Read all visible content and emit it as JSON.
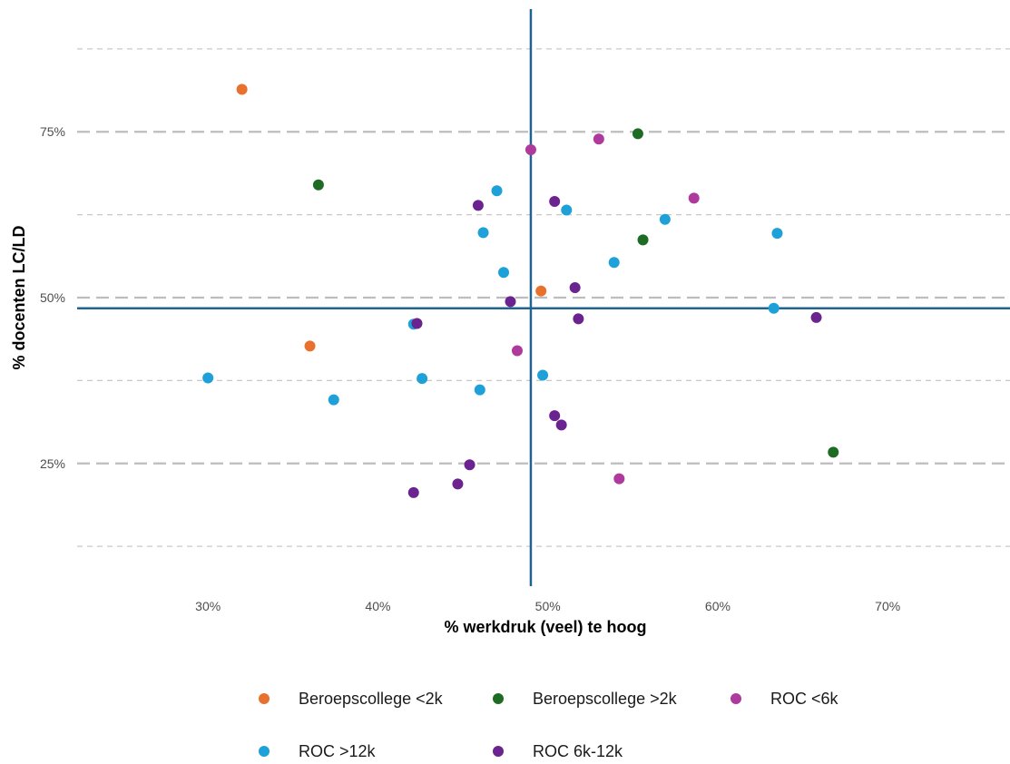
{
  "chart_data": {
    "type": "scatter",
    "xlabel": "% werkdruk (veel) te hoog",
    "ylabel": "% docenten LC/LD",
    "xlim": [
      22.3,
      77.2
    ],
    "ylim": [
      6.5,
      93.5
    ],
    "x_ticks": [
      {
        "value": 30,
        "label": "30%"
      },
      {
        "value": 40,
        "label": "40%"
      },
      {
        "value": 50,
        "label": "50%"
      },
      {
        "value": 60,
        "label": "60%"
      },
      {
        "value": 70,
        "label": "70%"
      }
    ],
    "y_ticks": [
      {
        "value": 25,
        "label": "25%"
      },
      {
        "value": 50,
        "label": "50%"
      },
      {
        "value": 75,
        "label": "75%"
      }
    ],
    "y_minor_grid": [
      12.5,
      37.5,
      62.5,
      87.5
    ],
    "grid": "horizontal dashed",
    "reference_lines": {
      "x": 49.0,
      "y": 48.4,
      "color": "#1f6391"
    },
    "legend_position": "bottom",
    "series": [
      {
        "name": "Beroepscollege <2k",
        "color": "#e8712d",
        "points": [
          [
            32.0,
            81.4
          ],
          [
            36.0,
            42.7
          ],
          [
            49.6,
            51.0
          ]
        ]
      },
      {
        "name": "Beroepscollege >2k",
        "color": "#1e6b24",
        "points": [
          [
            36.5,
            67.0
          ],
          [
            55.3,
            74.7
          ],
          [
            55.6,
            58.7
          ],
          [
            66.8,
            26.7
          ]
        ]
      },
      {
        "name": "ROC <6k",
        "color": "#ad3a9c",
        "points": [
          [
            49.0,
            72.3
          ],
          [
            53.0,
            73.9
          ],
          [
            58.6,
            65.0
          ],
          [
            48.2,
            42.0
          ],
          [
            54.2,
            22.7
          ]
        ]
      },
      {
        "name": "ROC >12k",
        "color": "#1ea0d8",
        "points": [
          [
            47.0,
            66.1
          ],
          [
            51.1,
            63.2
          ],
          [
            46.2,
            59.8
          ],
          [
            56.9,
            61.8
          ],
          [
            63.5,
            59.7
          ],
          [
            47.4,
            53.8
          ],
          [
            53.9,
            55.3
          ],
          [
            63.3,
            48.4
          ],
          [
            42.1,
            46.0
          ],
          [
            30.0,
            37.9
          ],
          [
            42.6,
            37.8
          ],
          [
            49.7,
            38.3
          ],
          [
            37.4,
            34.6
          ],
          [
            46.0,
            36.1
          ]
        ]
      },
      {
        "name": "ROC 6k-12k",
        "color": "#6b2390",
        "points": [
          [
            45.9,
            63.9
          ],
          [
            50.4,
            64.5
          ],
          [
            47.8,
            49.4
          ],
          [
            51.6,
            51.5
          ],
          [
            51.8,
            46.8
          ],
          [
            42.3,
            46.1
          ],
          [
            65.8,
            47.0
          ],
          [
            50.4,
            32.2
          ],
          [
            50.8,
            30.8
          ],
          [
            45.4,
            24.8
          ],
          [
            44.7,
            21.9
          ],
          [
            42.1,
            20.6
          ]
        ]
      }
    ]
  },
  "legend": {
    "items": [
      {
        "label": "Beroepscollege <2k",
        "color": "#e8712d"
      },
      {
        "label": "Beroepscollege >2k",
        "color": "#1e6b24"
      },
      {
        "label": "ROC <6k",
        "color": "#ad3a9c"
      },
      {
        "label": "ROC >12k",
        "color": "#1ea0d8"
      },
      {
        "label": "ROC 6k-12k",
        "color": "#6b2390"
      }
    ]
  }
}
